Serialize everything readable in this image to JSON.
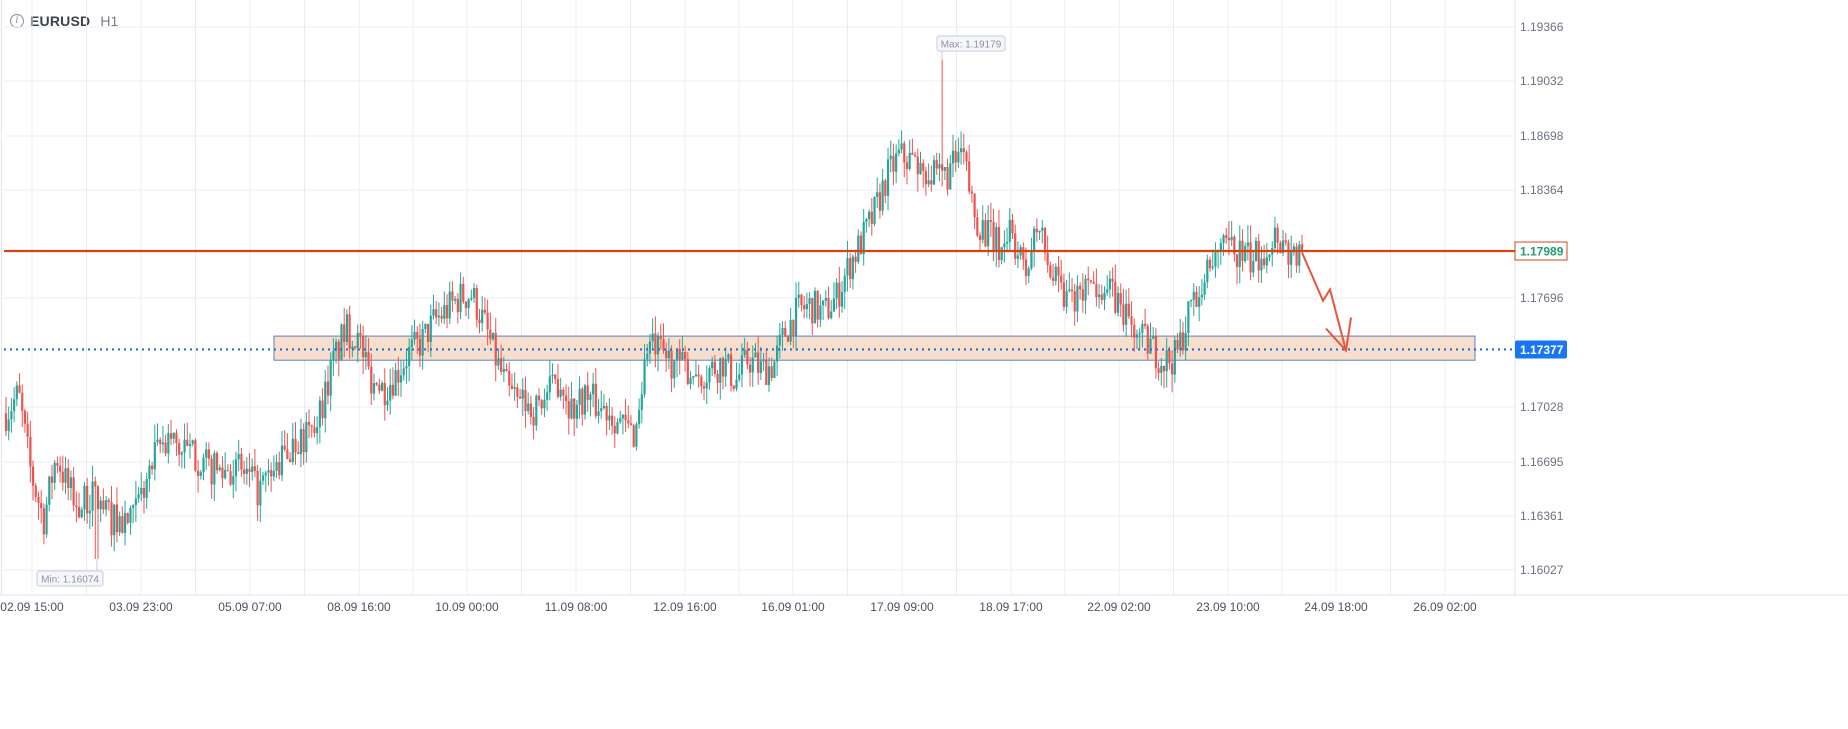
{
  "header": {
    "symbol": "EURUSD",
    "timeframe": "H1",
    "info_icon": "info-icon"
  },
  "colors": {
    "bull": "#26a69a",
    "bear": "#ef5350",
    "grid": "#e8ecf3",
    "resistance": "#d84315",
    "support": "#1e6fd9",
    "zone_fill": "#f7d9c4",
    "zone_stroke": "#5b7fc4",
    "arrow": "#e8553d"
  },
  "chart_data": {
    "type": "candlestick",
    "symbol": "EURUSD",
    "timeframe": "H1",
    "y_ticks": [
      "1.19366",
      "1.19032",
      "1.18698",
      "1.18364",
      "1.17696",
      "1.17028",
      "1.16695",
      "1.16361",
      "1.16027"
    ],
    "ylim": [
      1.1585,
      1.1955
    ],
    "x_ticks": [
      "02.09 15:00",
      "03.09 23:00",
      "05.09 07:00",
      "08.09 16:00",
      "10.09 00:00",
      "11.09 08:00",
      "12.09 16:00",
      "16.09 01:00",
      "17.09 09:00",
      "18.09 17:00",
      "22.09 02:00",
      "23.09 10:00",
      "24.09 18:00",
      "26.09 02:00"
    ],
    "grid": true,
    "max_label": "Max: 1.19179",
    "min_label": "Min: 1.16074",
    "max_value": 1.19179,
    "min_value": 1.16074,
    "resistance_level": 1.17989,
    "resistance_label": "1.17989",
    "support_level": 1.17377,
    "support_label": "1.17377",
    "zone": [
      1.1731,
      1.1746
    ],
    "forecast_path": [
      1.1798,
      1.1768,
      1.1775,
      1.1737
    ],
    "price_path": [
      1.1698,
      1.171,
      1.166,
      1.1632,
      1.1672,
      1.165,
      1.164,
      1.1648,
      1.1635,
      1.163,
      1.163,
      1.1652,
      1.1673,
      1.1683,
      1.1675,
      1.1672,
      1.1664,
      1.1662,
      1.1665,
      1.166,
      1.165,
      1.1657,
      1.167,
      1.168,
      1.1683,
      1.17,
      1.173,
      1.175,
      1.1745,
      1.172,
      1.1713,
      1.1722,
      1.1735,
      1.1742,
      1.1755,
      1.1762,
      1.177,
      1.1772,
      1.1754,
      1.173,
      1.171,
      1.1705,
      1.17,
      1.171,
      1.172,
      1.17,
      1.171,
      1.1703,
      1.17,
      1.169,
      1.1685,
      1.1742,
      1.1735,
      1.173,
      1.1726,
      1.1722,
      1.1725,
      1.173,
      1.1718,
      1.1732,
      1.1725,
      1.1728,
      1.175,
      1.1762,
      1.1765,
      1.176,
      1.177,
      1.179,
      1.1805,
      1.1822,
      1.1845,
      1.1858,
      1.1855,
      1.185,
      1.1843,
      1.1848,
      1.186,
      1.182,
      1.181,
      1.18,
      1.181,
      1.1783,
      1.1815,
      1.1785,
      1.177,
      1.1765,
      1.1775,
      1.178,
      1.177,
      1.176,
      1.1745,
      1.174,
      1.173,
      1.1733,
      1.176,
      1.178,
      1.1795,
      1.18,
      1.1798,
      1.1792,
      1.18,
      1.181,
      1.1798,
      1.1795
    ]
  }
}
